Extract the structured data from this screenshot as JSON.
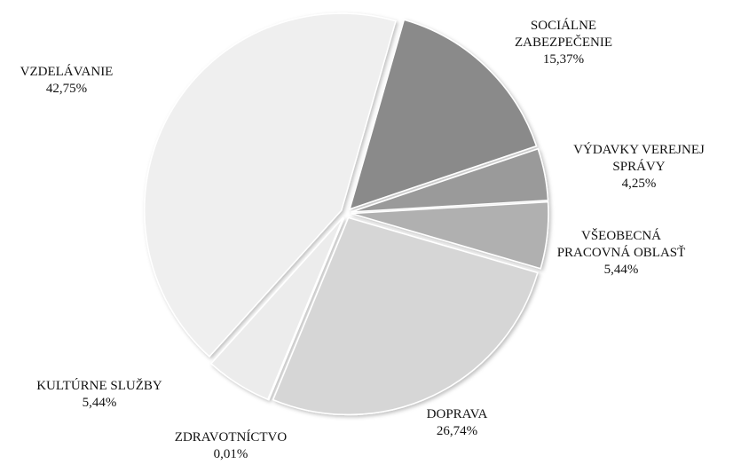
{
  "chart_data": {
    "type": "pie",
    "categories": [
      "SOCIÁLNE ZABEZPEČENIE",
      "VÝDAVKY VEREJNEJ SPRÁVY",
      "VŠEOBECNÁ PRACOVNÁ OBLASŤ",
      "DOPRAVA",
      "ZDRAVOTNÍCTVO",
      "KULTÚRNE SLUŽBY",
      "VZDELÁVANIE"
    ],
    "values": [
      15.37,
      4.25,
      5.44,
      26.74,
      0.01,
      5.44,
      42.75
    ],
    "value_labels": [
      "15,37%",
      "4,25%",
      "5,44%",
      "26,74%",
      "0,01%",
      "5,44%",
      "42,75%"
    ],
    "colors": [
      "#8a8a8a",
      "#9a9a9a",
      "#b0b0b0",
      "#d6d6d6",
      "#e2e2e2",
      "#ececec",
      "#efefef"
    ]
  }
}
